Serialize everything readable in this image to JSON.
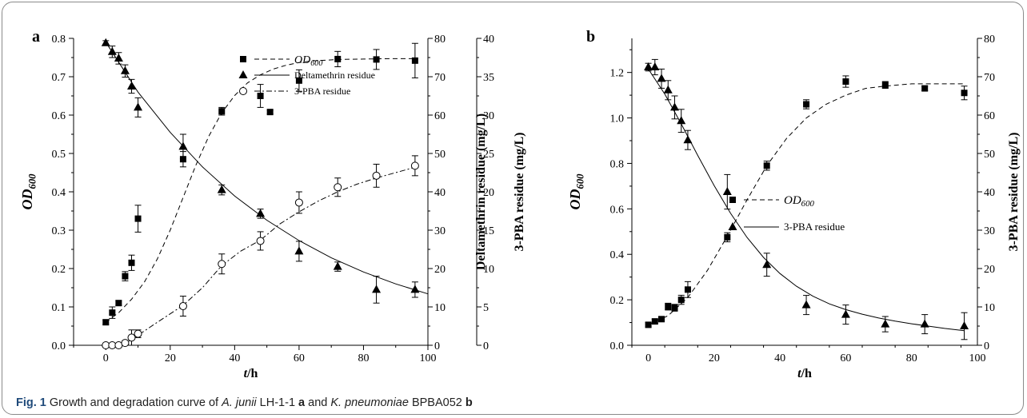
{
  "chart_data": [
    {
      "type": "scatter",
      "panel_label": "a",
      "xlabel_italic": "t",
      "xlabel_rest": "/h",
      "xlim": [
        -10,
        100
      ],
      "xticks": [
        0,
        20,
        40,
        60,
        80,
        100
      ],
      "y_axes": [
        {
          "label_main": "OD",
          "label_sub": "600",
          "italic": true,
          "ylim": [
            0,
            0.8
          ],
          "ticks": [
            0.0,
            0.1,
            0.2,
            0.3,
            0.4,
            0.5,
            0.6,
            0.7,
            0.8
          ],
          "decimals": 1
        },
        {
          "label": "Deltamethrin residue  (mg/L)",
          "ylim": [
            0,
            80
          ],
          "ticks": [
            0,
            10,
            20,
            30,
            40,
            50,
            60,
            70,
            80
          ],
          "decimals": 0
        },
        {
          "label": "3-PBA residue  (mg/L)",
          "ylim": [
            0,
            40
          ],
          "ticks": [
            0,
            5,
            10,
            15,
            20,
            25,
            30,
            35,
            40
          ],
          "decimals": 0
        }
      ],
      "series": [
        {
          "name": "OD600",
          "axis": 0,
          "marker": "square",
          "line": "dashed",
          "x": [
            0,
            2,
            4,
            6,
            8,
            10,
            24,
            36,
            48,
            51,
            60,
            72,
            84,
            96
          ],
          "y": [
            0.06,
            0.085,
            0.11,
            0.18,
            0.215,
            0.33,
            0.485,
            0.61,
            0.65,
            0.608,
            0.69,
            0.746,
            0.745,
            0.742
          ],
          "err": [
            0.006,
            0.015,
            0.006,
            0.012,
            0.02,
            0.035,
            0.02,
            0.01,
            0.03,
            0.005,
            0.028,
            0.02,
            0.026,
            0.045
          ],
          "fit_x": [
            0,
            4,
            8,
            12,
            16,
            20,
            24,
            28,
            32,
            36,
            40,
            44,
            48,
            52,
            56,
            60,
            64,
            68,
            72,
            80,
            88,
            96
          ],
          "fit_y": [
            0.06,
            0.085,
            0.12,
            0.165,
            0.225,
            0.3,
            0.385,
            0.47,
            0.545,
            0.606,
            0.651,
            0.684,
            0.705,
            0.72,
            0.73,
            0.737,
            0.741,
            0.743,
            0.745,
            0.746,
            0.747,
            0.747
          ]
        },
        {
          "name": "Deltamethrin residue",
          "axis": 1,
          "marker": "triangle",
          "line": "solid",
          "x": [
            0,
            2,
            4,
            6,
            8,
            10,
            24,
            36,
            48,
            60,
            72,
            84,
            96
          ],
          "y": [
            78.8,
            76.5,
            74.8,
            71.5,
            67.5,
            62,
            51.8,
            40.5,
            34.3,
            24.5,
            20.5,
            14.5,
            14.5
          ],
          "err": [
            0.6,
            1.5,
            1.5,
            1.6,
            1.8,
            2.5,
            3.2,
            1.3,
            1.2,
            2.6,
            1.2,
            3.5,
            2.0
          ],
          "fit_x": [
            0,
            10,
            20,
            30,
            40,
            50,
            60,
            70,
            80,
            90,
            100
          ],
          "fit_y": [
            79,
            66,
            55.5,
            46.5,
            38.9,
            32.6,
            27.3,
            22.8,
            19.1,
            16.0,
            13.4
          ]
        },
        {
          "name": "3-PBA residue",
          "axis": 2,
          "marker": "circle-open",
          "line": "dash-dot",
          "x": [
            0,
            2,
            4,
            6,
            8,
            10,
            24,
            36,
            48,
            60,
            72,
            84,
            96
          ],
          "y": [
            0,
            0,
            0,
            0.3,
            1.0,
            1.5,
            5.1,
            10.6,
            13.6,
            18.6,
            20.6,
            22.1,
            23.4
          ],
          "err": [
            0,
            0,
            0,
            0.3,
            1.0,
            0.5,
            1.3,
            1.3,
            1.2,
            1.4,
            1.2,
            1.5,
            1.3
          ],
          "fit_x": [
            0,
            6,
            10,
            16,
            24,
            30,
            36,
            42,
            48,
            54,
            60,
            66,
            72,
            78,
            84,
            90,
            96
          ],
          "fit_y": [
            0,
            0.2,
            1.3,
            3.0,
            5.2,
            7.5,
            10.4,
            12.3,
            13.7,
            15.8,
            17.4,
            18.8,
            20.0,
            21.0,
            21.8,
            22.5,
            23.2
          ]
        }
      ],
      "legend": [
        {
          "label_main": "OD",
          "label_sub": "600",
          "italic": true,
          "marker": "square",
          "line": "dashed"
        },
        {
          "label": "Deltamethrin residue",
          "marker": "triangle",
          "line": "solid"
        },
        {
          "label": "3-PBA residue",
          "marker": "circle-open",
          "line": "dash-dot"
        }
      ]
    },
    {
      "type": "scatter",
      "panel_label": "b",
      "xlabel_italic": "t",
      "xlabel_rest": "/h",
      "xlim": [
        -5,
        100
      ],
      "xticks": [
        0,
        20,
        40,
        60,
        80,
        100
      ],
      "y_axes": [
        {
          "label_main": "OD",
          "label_sub": "600",
          "italic": true,
          "ylim": [
            0,
            1.35
          ],
          "ticks": [
            0.0,
            0.2,
            0.4,
            0.6,
            0.8,
            1.0,
            1.2
          ],
          "decimals": 1
        },
        {
          "label": "3-PBA residue  (mg/L)",
          "ylim": [
            0,
            80
          ],
          "ticks": [
            0,
            10,
            20,
            30,
            40,
            50,
            60,
            70,
            80
          ],
          "decimals": 0
        }
      ],
      "series": [
        {
          "name": "OD600",
          "axis": 0,
          "marker": "square",
          "line": "dashed",
          "x": [
            0,
            2,
            4,
            6,
            8,
            10,
            12,
            24,
            36,
            48,
            60,
            72,
            84,
            96
          ],
          "y": [
            0.09,
            0.105,
            0.115,
            0.17,
            0.165,
            0.2,
            0.245,
            0.475,
            0.79,
            1.06,
            1.16,
            1.145,
            1.13,
            1.11
          ],
          "err": [
            0.01,
            0.01,
            0.01,
            0.015,
            0.015,
            0.02,
            0.035,
            0.02,
            0.02,
            0.02,
            0.025,
            0.015,
            0.01,
            0.03
          ],
          "fit_x": [
            0,
            6,
            12,
            18,
            24,
            30,
            36,
            42,
            48,
            54,
            60,
            66,
            72,
            80,
            88,
            96
          ],
          "fit_y": [
            0.09,
            0.13,
            0.21,
            0.33,
            0.48,
            0.64,
            0.79,
            0.91,
            1.0,
            1.06,
            1.1,
            1.13,
            1.14,
            1.15,
            1.15,
            1.15
          ]
        },
        {
          "name": "3-PBA residue",
          "axis": 1,
          "marker": "triangle",
          "line": "solid",
          "x": [
            0,
            2,
            4,
            6,
            8,
            10,
            12,
            24,
            36,
            48,
            60,
            72,
            84,
            96
          ],
          "y": [
            72.5,
            72.5,
            69.5,
            66.5,
            62.0,
            58.5,
            53.5,
            40.0,
            21.0,
            10.5,
            8.0,
            5.5,
            5.5,
            5.0
          ],
          "err": [
            1.0,
            2.0,
            2.5,
            2.5,
            3.0,
            3.0,
            2.5,
            4.5,
            3.0,
            2.5,
            2.5,
            2.0,
            2.5,
            3.5
          ],
          "fit_x": [
            0,
            5,
            10,
            15,
            20,
            25,
            30,
            35,
            40,
            45,
            50,
            55,
            60,
            65,
            70,
            75,
            80,
            85,
            90,
            96
          ],
          "fit_y": [
            72.0,
            65.5,
            57.7,
            49.5,
            41.6,
            34.4,
            28.1,
            22.9,
            18.7,
            15.4,
            12.8,
            10.8,
            9.3,
            8.1,
            7.1,
            6.3,
            5.6,
            5.0,
            4.4,
            3.8
          ]
        }
      ],
      "legend": [
        {
          "label_main": "OD",
          "label_sub": "600",
          "italic": true,
          "marker": "square",
          "line": "dashed"
        },
        {
          "label": "3-PBA residue",
          "marker": "triangle",
          "line": "solid"
        }
      ]
    }
  ],
  "caption": {
    "label": "Fig. 1",
    "text_1": "  Growth and degradation curve of ",
    "italic_1": "A. junii",
    "text_2": " LH-1-1 ",
    "bold_1": "a",
    "text_3": " and ",
    "italic_2": "K. pneumoniae",
    "text_4": " BPBA052 ",
    "bold_2": "b"
  }
}
